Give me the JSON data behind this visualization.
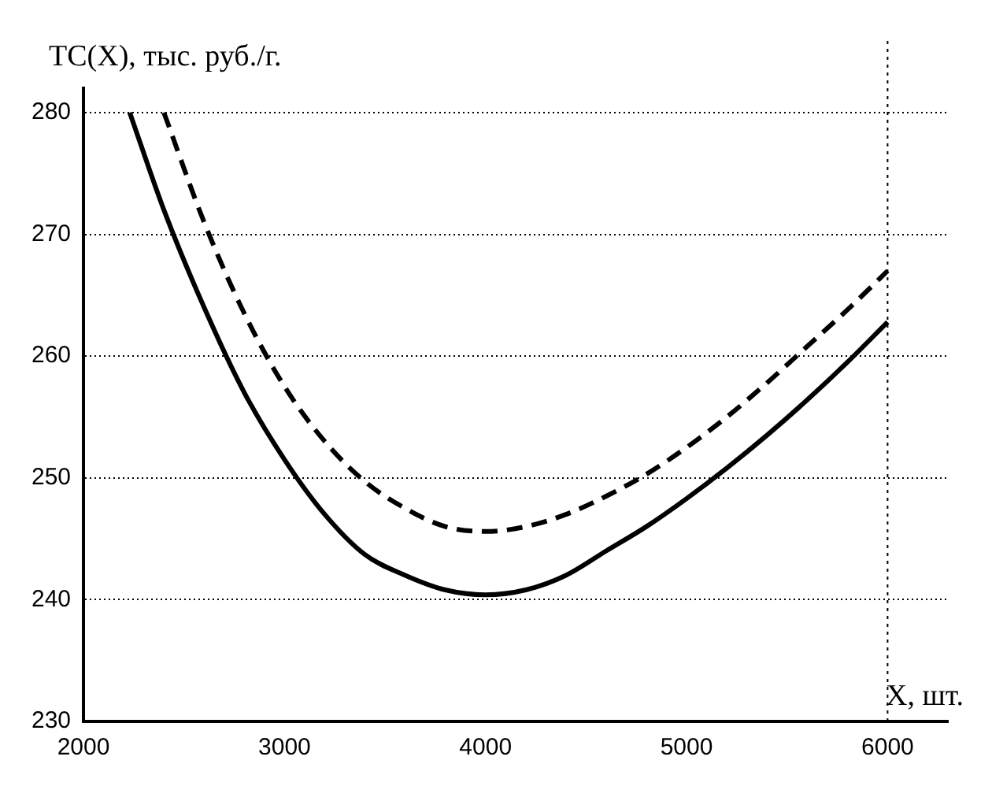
{
  "chart_data": {
    "type": "line",
    "xlabel": "X, шт.",
    "ylabel": "TC(X), тыс. руб./г.",
    "xlim": [
      2000,
      6300
    ],
    "ylim": [
      230,
      282
    ],
    "xticks": [
      2000,
      3000,
      4000,
      5000,
      6000
    ],
    "yticks": [
      230,
      240,
      250,
      260,
      270,
      280
    ],
    "grid": "y",
    "legend": false,
    "marker": "none",
    "ref_lines": [
      {
        "axis": "x",
        "value": 6000,
        "line_style": "dotted",
        "color": "#000000"
      }
    ],
    "series": [
      {
        "color": "#000000",
        "line_style": "solid",
        "x": [
          2230,
          2400,
          2600,
          2800,
          3000,
          3200,
          3400,
          3600,
          3800,
          4000,
          4200,
          4400,
          4600,
          4800,
          5000,
          5200,
          5400,
          5600,
          5800,
          6000
        ],
        "values": [
          280,
          272,
          264,
          257,
          251.5,
          247,
          243.7,
          242,
          240.8,
          240.4,
          240.8,
          242,
          244,
          246,
          248.3,
          250.8,
          253.5,
          256.4,
          259.5,
          262.8
        ]
      },
      {
        "color": "#000000",
        "line_style": "dashed",
        "x": [
          2400,
          2600,
          2800,
          3000,
          3200,
          3400,
          3600,
          3800,
          4000,
          4200,
          4400,
          4600,
          4800,
          5000,
          5200,
          5400,
          5600,
          5800,
          6000
        ],
        "values": [
          280,
          271,
          263.5,
          257.5,
          253,
          249.7,
          247.5,
          246,
          245.6,
          246,
          247,
          248.5,
          250.3,
          252.5,
          255,
          257.8,
          260.8,
          263.8,
          267
        ]
      }
    ]
  }
}
